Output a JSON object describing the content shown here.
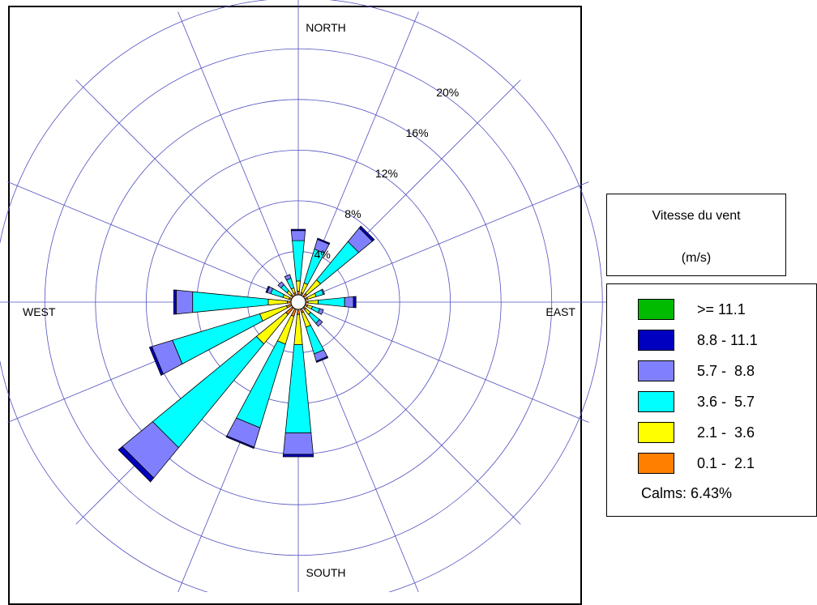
{
  "chart_data": {
    "type": "wind-rose",
    "directions": [
      0,
      22.5,
      45,
      67.5,
      90,
      112.5,
      135,
      157.5,
      180,
      202.5,
      225,
      247.5,
      270,
      292.5,
      315,
      337.5
    ],
    "compass_labels": {
      "north": "NORTH",
      "east": "EAST",
      "south": "SOUTH",
      "west": "WEST"
    },
    "ring_labels": [
      "4%",
      "8%",
      "12%",
      "16%",
      "20%"
    ],
    "rings": [
      4,
      8,
      12,
      16,
      20,
      24
    ],
    "spokes": 16,
    "units": "%",
    "series": [
      {
        "name": "0.1 -  2.1",
        "color": "#ff8000",
        "values": [
          0.3,
          0.2,
          0.3,
          0.2,
          0.2,
          0.2,
          0.2,
          0.3,
          0.4,
          0.6,
          0.7,
          0.4,
          0.3,
          0.2,
          0.2,
          0.2
        ]
      },
      {
        "name": "2.1 -  3.6",
        "color": "#ffff00",
        "values": [
          0.8,
          0.8,
          1.4,
          0.7,
          0.8,
          0.4,
          0.5,
          1.2,
          2.4,
          2.3,
          3.0,
          2.2,
          1.5,
          0.5,
          0.4,
          0.4
        ]
      },
      {
        "name": "3.6 -  5.7",
        "color": "#00ffff",
        "values": [
          3.2,
          2.8,
          3.9,
          0.6,
          2.1,
          0.6,
          0.9,
          2.2,
          7.0,
          6.9,
          10.6,
          7.2,
          6.0,
          1.0,
          0.6,
          0.8
        ]
      },
      {
        "name": "5.7 -  8.8",
        "color": "#8080ff",
        "values": [
          0.8,
          0.8,
          1.4,
          0.1,
          0.7,
          0.3,
          0.3,
          0.6,
          1.7,
          1.6,
          3.1,
          1.7,
          1.3,
          0.3,
          0.3,
          0.3
        ]
      },
      {
        "name": "8.8 - 11.1",
        "color": "#0000c0",
        "values": [
          0.1,
          0.1,
          0.2,
          0.0,
          0.2,
          0.0,
          0.0,
          0.1,
          0.2,
          0.1,
          0.4,
          0.2,
          0.2,
          0.1,
          0.0,
          0.0
        ]
      },
      {
        "name": ">= 11.1",
        "color": "#00bb00",
        "values": [
          0,
          0,
          0,
          0,
          0,
          0,
          0,
          0,
          0,
          0,
          0,
          0,
          0,
          0,
          0,
          0
        ]
      }
    ],
    "calms": "Calms: 6.43%"
  },
  "legend": {
    "title": "Vitesse du vent",
    "units": "(m/s)",
    "items": [
      {
        "label": ">= 11.1",
        "color": "#00bb00"
      },
      {
        "label": "8.8 - 11.1",
        "color": "#0000c0"
      },
      {
        "label": "5.7 -  8.8",
        "color": "#8080ff"
      },
      {
        "label": "3.6 -  5.7",
        "color": "#00ffff"
      },
      {
        "label": "2.1 -  3.6",
        "color": "#ffff00"
      },
      {
        "label": "0.1 -  2.1",
        "color": "#ff8000"
      }
    ],
    "calms": "Calms: 6.43%"
  },
  "colors": {
    "grid": "#5050c0",
    "outline": "#000000"
  }
}
